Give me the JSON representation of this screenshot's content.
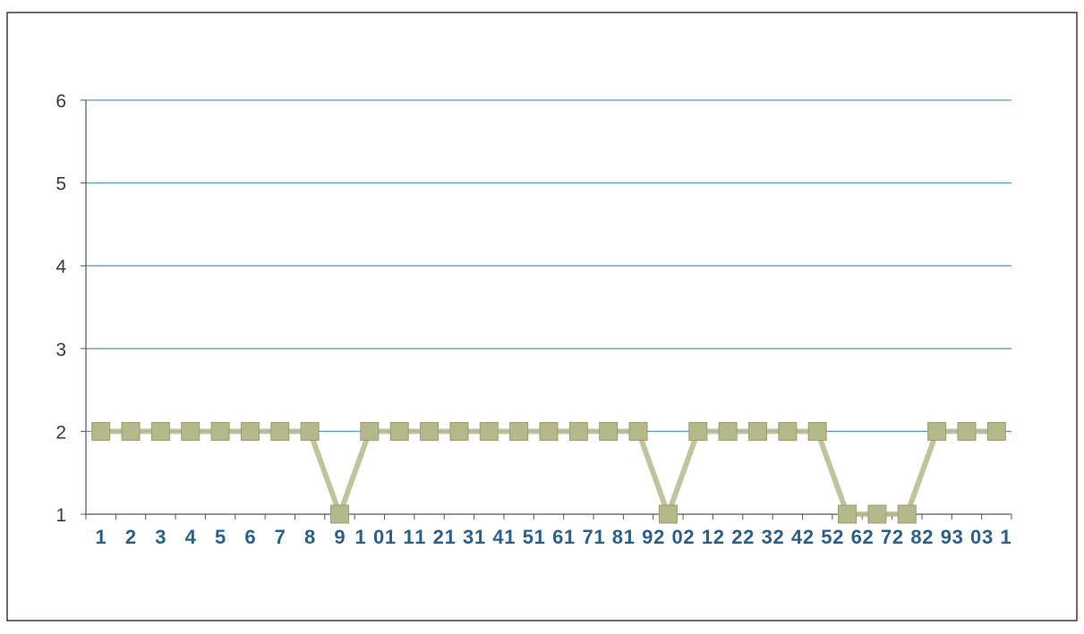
{
  "chart_data": {
    "type": "line",
    "categories": [
      "1",
      "2",
      "3",
      "4",
      "5",
      "6",
      "7",
      "8",
      "9",
      "10",
      "11",
      "12",
      "13",
      "14",
      "15",
      "16",
      "17",
      "18",
      "19",
      "20",
      "21",
      "22",
      "23",
      "24",
      "25",
      "26",
      "27",
      "28",
      "29",
      "30",
      "31"
    ],
    "series": [
      {
        "values": [
          2,
          2,
          2,
          2,
          2,
          2,
          2,
          2,
          1,
          2,
          2,
          2,
          2,
          2,
          2,
          2,
          2,
          2,
          2,
          1,
          2,
          2,
          2,
          2,
          2,
          1,
          1,
          1,
          2,
          2,
          2
        ],
        "color": "#b5b88a"
      }
    ],
    "y_ticks": [
      "1",
      "2",
      "3",
      "4",
      "5",
      "6"
    ],
    "ylim": [
      1,
      6
    ],
    "title": "",
    "xlabel": "",
    "ylabel": "",
    "grid": true,
    "gridline_color": "#5b9bd5",
    "x_tick_color": "#2c5f8a",
    "y_tick_color": "#3a3a3a",
    "legend": "none"
  }
}
